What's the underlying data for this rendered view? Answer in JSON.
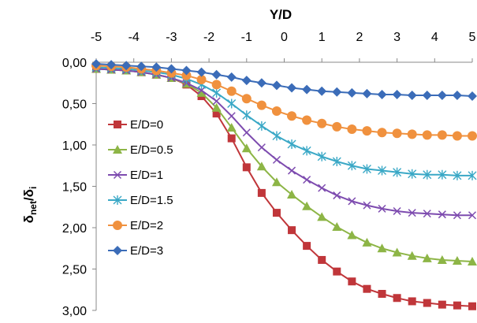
{
  "chart_data": {
    "type": "line",
    "xlabel": "Y/D",
    "ylabel_main": "δ",
    "ylabel_sub1": "net",
    "ylabel_sep": "/δ",
    "ylabel_sub2": "i",
    "x_axis_position": "top",
    "y_axis_inverted": true,
    "xlim": [
      -5,
      5
    ],
    "ylim": [
      0,
      3
    ],
    "x_ticks": [
      -5,
      -4,
      -3,
      -2,
      -1,
      0,
      1,
      2,
      3,
      4,
      5
    ],
    "y_ticks": [
      0,
      0.5,
      1,
      1.5,
      2,
      2.5,
      3
    ],
    "y_tick_labels": [
      "0,00",
      "0,50",
      "1,00",
      "1,50",
      "2,00",
      "2,50",
      "3,00"
    ],
    "grid": false,
    "legend_position": "left",
    "x": [
      -5,
      -4.6,
      -4.2,
      -3.8,
      -3.4,
      -3.0,
      -2.6,
      -2.2,
      -1.8,
      -1.4,
      -1.0,
      -0.6,
      -0.2,
      0.2,
      0.6,
      1.0,
      1.4,
      1.8,
      2.2,
      2.6,
      3.0,
      3.4,
      3.8,
      4.2,
      4.6,
      5.0
    ],
    "series": [
      {
        "name": "E/D=0",
        "marker": "square",
        "color": "#C0363A",
        "values": [
          0.08,
          0.09,
          0.1,
          0.12,
          0.15,
          0.19,
          0.27,
          0.41,
          0.62,
          0.92,
          1.27,
          1.58,
          1.82,
          2.03,
          2.22,
          2.39,
          2.53,
          2.65,
          2.74,
          2.8,
          2.85,
          2.89,
          2.91,
          2.93,
          2.94,
          2.95
        ]
      },
      {
        "name": "E/D=0.5",
        "marker": "triangle",
        "color": "#8DB546",
        "values": [
          0.08,
          0.09,
          0.1,
          0.12,
          0.15,
          0.19,
          0.26,
          0.37,
          0.55,
          0.79,
          1.04,
          1.26,
          1.45,
          1.6,
          1.74,
          1.87,
          1.99,
          2.09,
          2.18,
          2.25,
          2.3,
          2.34,
          2.37,
          2.39,
          2.4,
          2.41
        ]
      },
      {
        "name": "E/D=1",
        "marker": "x",
        "color": "#7D4BAF",
        "values": [
          0.08,
          0.09,
          0.1,
          0.12,
          0.15,
          0.19,
          0.25,
          0.34,
          0.47,
          0.65,
          0.85,
          1.03,
          1.18,
          1.31,
          1.42,
          1.52,
          1.61,
          1.68,
          1.73,
          1.77,
          1.8,
          1.82,
          1.83,
          1.84,
          1.85,
          1.85
        ]
      },
      {
        "name": "E/D=1.5",
        "marker": "asterisk",
        "color": "#3AA8C6",
        "values": [
          0.06,
          0.07,
          0.08,
          0.1,
          0.12,
          0.15,
          0.2,
          0.27,
          0.37,
          0.5,
          0.64,
          0.77,
          0.89,
          0.99,
          1.07,
          1.14,
          1.2,
          1.25,
          1.29,
          1.31,
          1.33,
          1.35,
          1.36,
          1.36,
          1.37,
          1.37
        ]
      },
      {
        "name": "E/D=2",
        "marker": "circle",
        "color": "#F0913E",
        "values": [
          0.04,
          0.05,
          0.06,
          0.08,
          0.1,
          0.13,
          0.16,
          0.21,
          0.27,
          0.35,
          0.44,
          0.52,
          0.59,
          0.65,
          0.7,
          0.74,
          0.78,
          0.81,
          0.83,
          0.85,
          0.86,
          0.87,
          0.88,
          0.88,
          0.89,
          0.89
        ]
      },
      {
        "name": "E/D=3",
        "marker": "diamond",
        "color": "#3B6CB8",
        "values": [
          0.02,
          0.03,
          0.04,
          0.05,
          0.06,
          0.08,
          0.1,
          0.12,
          0.15,
          0.18,
          0.22,
          0.25,
          0.28,
          0.31,
          0.33,
          0.35,
          0.36,
          0.37,
          0.38,
          0.39,
          0.39,
          0.4,
          0.4,
          0.4,
          0.4,
          0.41
        ]
      }
    ]
  }
}
